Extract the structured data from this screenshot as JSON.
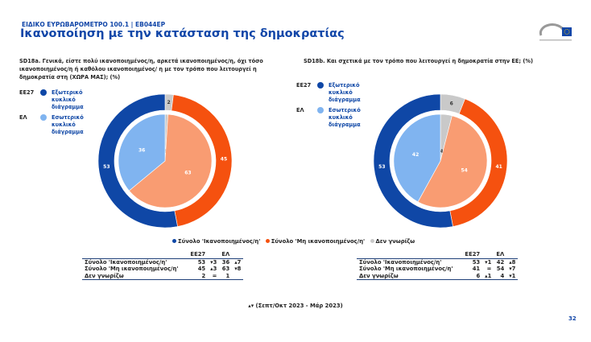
{
  "header": {
    "supertitle": "ΕΙΔΙΚΟ ΕΥΡΩΒΑΡΟΜΕΤΡΟ 100.1 | EB044EP",
    "title": "Ικανοποίηση με την κατάσταση της δημοκρατίας",
    "logo_text": "Ευρωπαϊκό Κοινοβούλιο"
  },
  "legend_rings": {
    "outer_code": "ΕΕ27",
    "outer_label": "Εξωτερικό κυκλικό διάγραμμα",
    "inner_code": "ΕΛ",
    "inner_label": "Εσωτερικό κυκλικό διάγραμμα"
  },
  "colors": {
    "satisfied": "#0f47a6",
    "not_satisfied": "#f5510f",
    "dont_know": "#c9c9c9",
    "satisfied_inner": "#80b4f0",
    "not_satisfied_inner": "#f99c72"
  },
  "chart_data": [
    {
      "type": "pie",
      "id": "SD18a",
      "title": "SD18a. Γενικά, είστε πολύ ικανοποιημένος/η, αρκετά ικανοποιημένος/η, όχι τόσο ικανοποιημένος/η ή καθόλου ικανοποιημένος/ η με τον τρόπο που λειτουργεί η δημοκρατία στη (ΧΩΡΑ ΜΑΣ); (%)",
      "categories": [
        "Σύνολο 'Ικανοποιημένος/η'",
        "Σύνολο 'Μη ικανοποιημένος/η'",
        "Δεν γνωρίζω"
      ],
      "series": [
        {
          "name": "ΕΕ27",
          "values": [
            53,
            45,
            2
          ]
        },
        {
          "name": "ΕΛ",
          "values": [
            36,
            63,
            1
          ]
        }
      ]
    },
    {
      "type": "pie",
      "id": "SD18b",
      "title": "SD18b. Και σχετικά με τον τρόπο που λειτουργεί η δημοκρατία στην ΕΕ; (%)",
      "categories": [
        "Σύνολο 'Ικανοποιημένος/η'",
        "Σύνολο 'Μη ικανοποιημένος/η'",
        "Δεν γνωρίζω"
      ],
      "series": [
        {
          "name": "ΕΕ27",
          "values": [
            53,
            41,
            6
          ]
        },
        {
          "name": "ΕΛ",
          "values": [
            42,
            54,
            4
          ]
        }
      ]
    }
  ],
  "bottom_legend": [
    "Σύνολο 'Ικανοποιημένος/η'",
    "Σύνολο 'Μη ικανοποιημένος/η'",
    "Δεν γνωρίζω"
  ],
  "tables": [
    {
      "headers": [
        "",
        "ΕΕ27",
        "",
        "ΕΛ",
        ""
      ],
      "rows": [
        [
          "Σύνολο 'Ικανοποιημένος/η'",
          "53",
          "▾3",
          "36",
          "▴7"
        ],
        [
          "Σύνολο 'Μη ικανοποιημένος/η'",
          "45",
          "▴3",
          "63",
          "▾8"
        ],
        [
          "Δεν γνωρίζω",
          "2",
          "=",
          "1",
          ""
        ]
      ]
    },
    {
      "headers": [
        "",
        "ΕΕ27",
        "",
        "ΕΛ",
        ""
      ],
      "rows": [
        [
          "Σύνολο 'Ικανοποιημένος/η'",
          "53",
          "▾1",
          "42",
          "▴8"
        ],
        [
          "Σύνολο 'Μη ικανοποιημένος/η'",
          "41",
          "=",
          "54",
          "▾7"
        ],
        [
          "Δεν γνωρίζω",
          "6",
          "▴1",
          "4",
          "▾1"
        ]
      ]
    }
  ],
  "footnote": "▴▾ (Σεπτ/Οκτ 2023 - Μάρ 2023)",
  "page_number": "32"
}
